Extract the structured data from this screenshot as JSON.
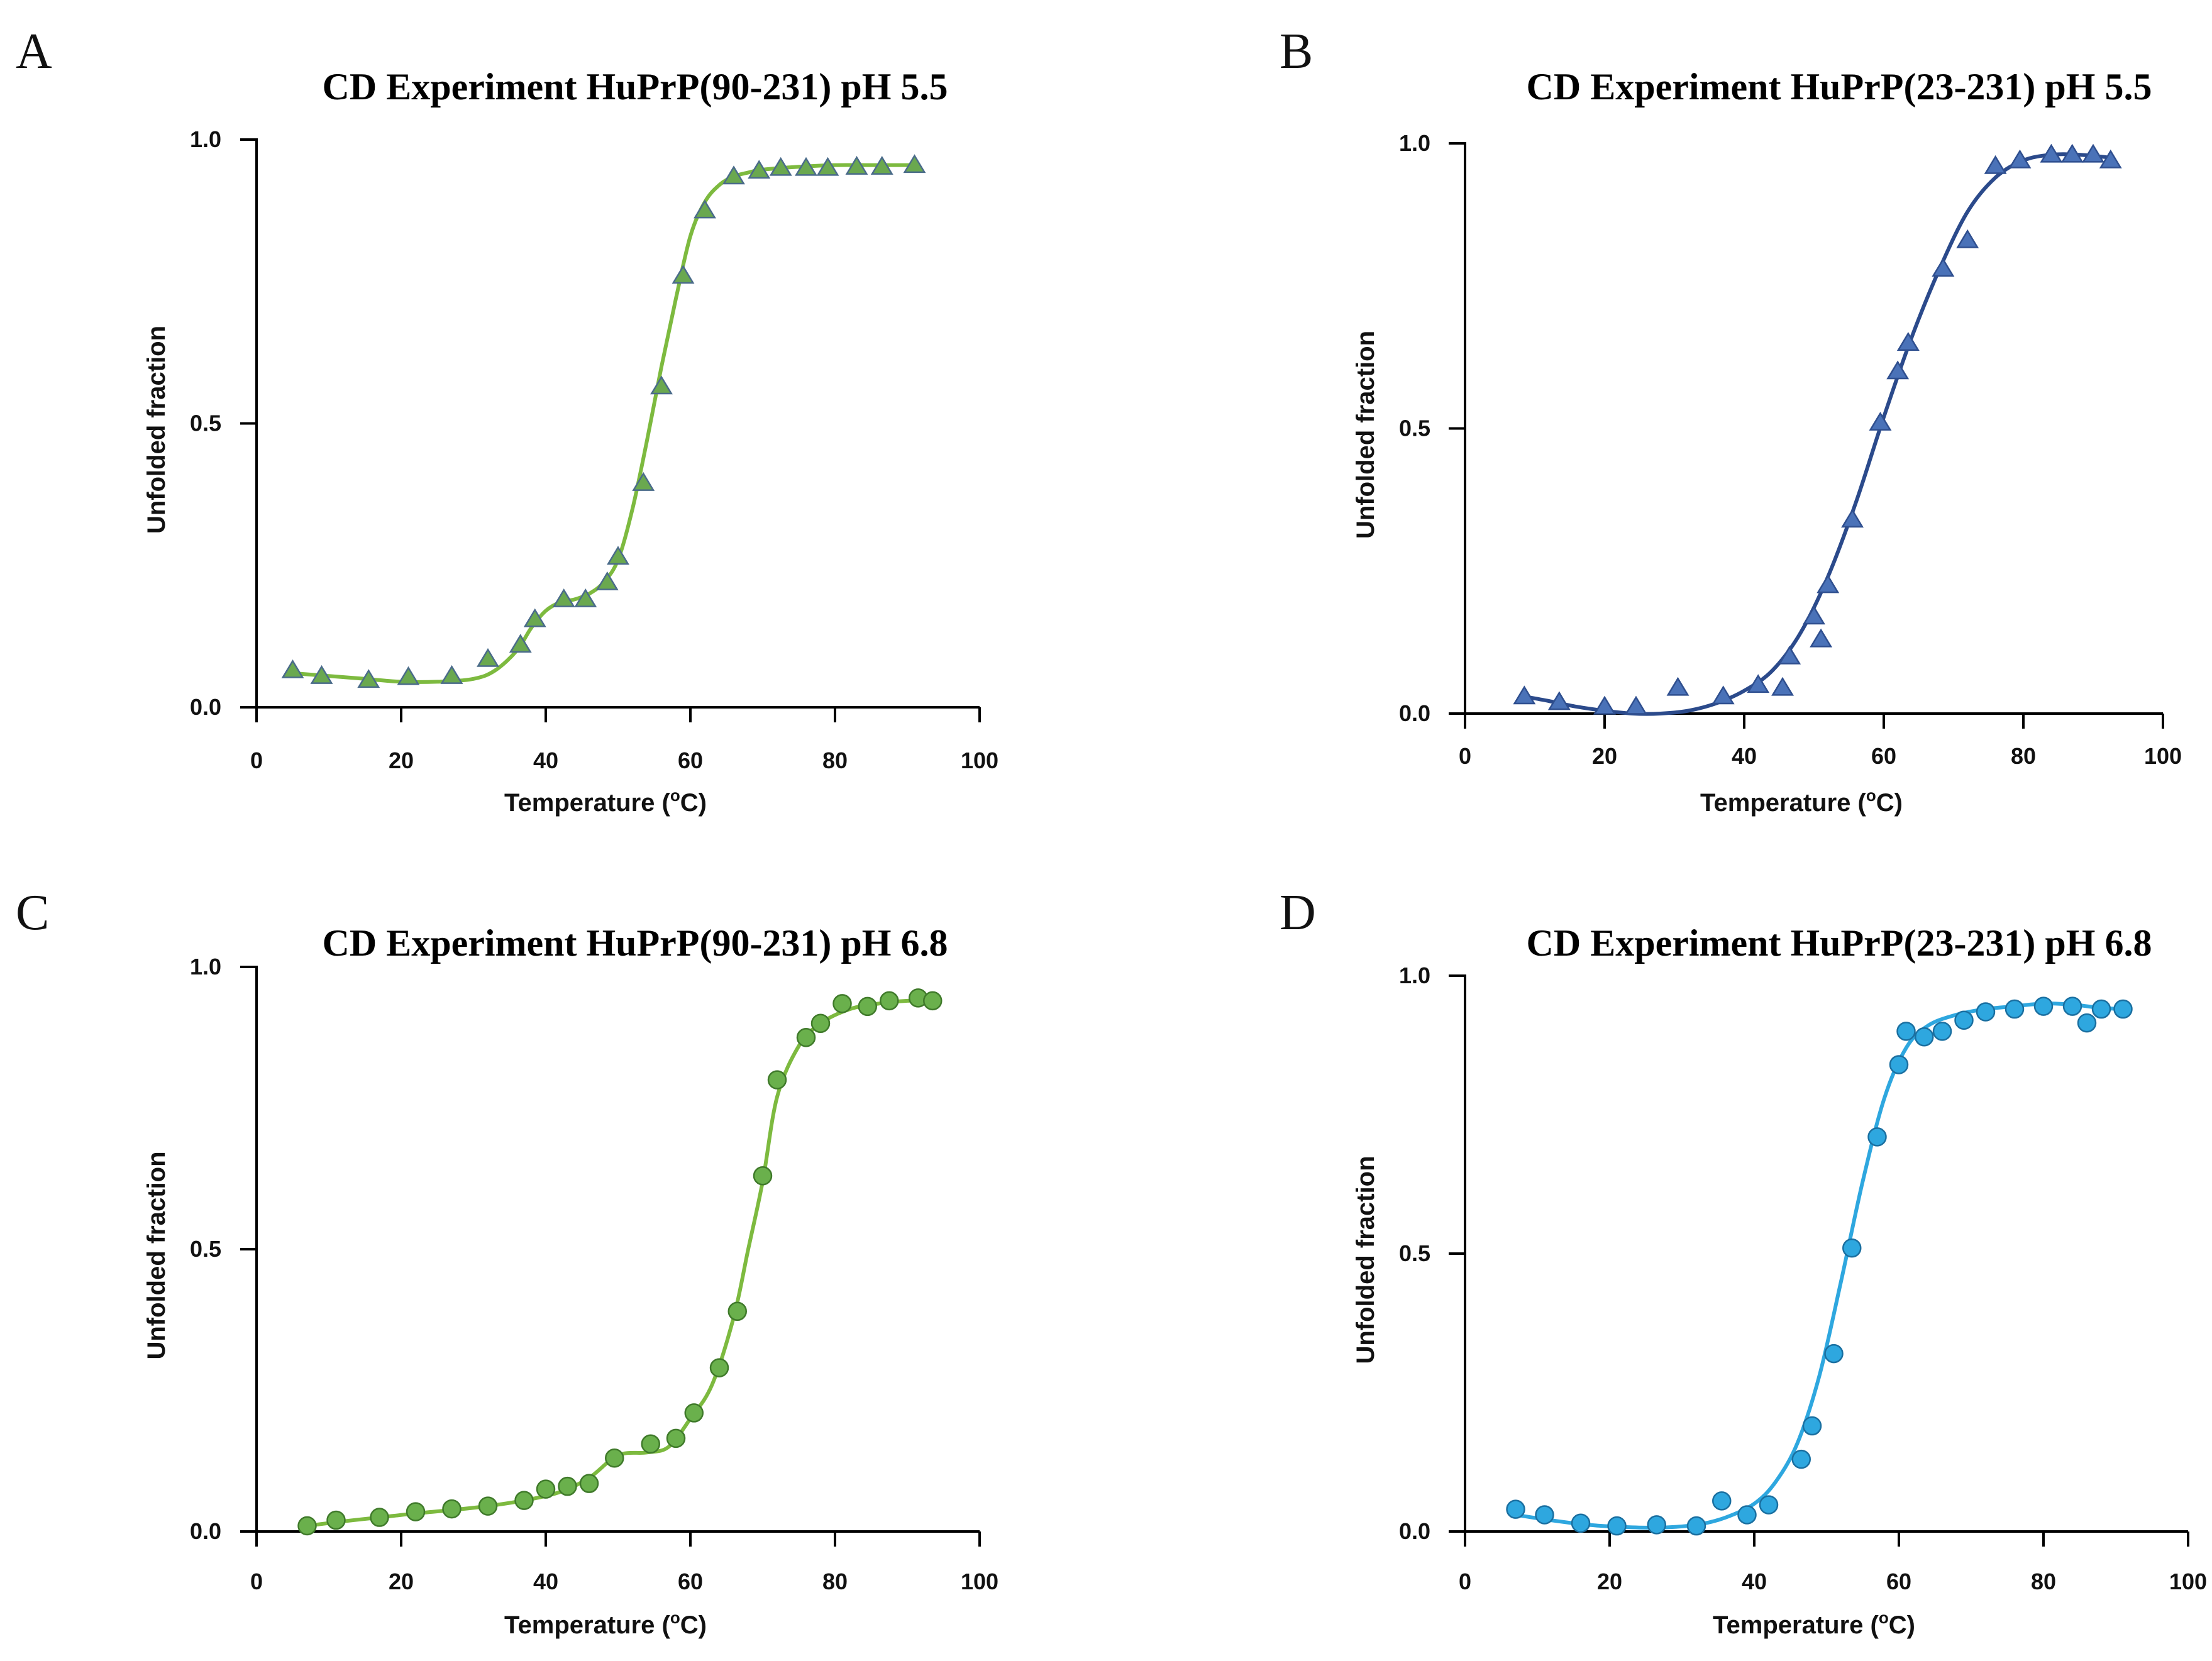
{
  "chart_data": [
    {
      "panel": "A",
      "type": "scatter",
      "title": "CD Experiment HuPrP(90-231) pH 5.5",
      "xlabel": "Temperature (",
      "xlabel_sup": "o",
      "xlabel_unit": "C)",
      "ylabel": "Unfolded fraction",
      "xlim": [
        0,
        100
      ],
      "ylim": [
        0,
        1.0
      ],
      "xticks": [
        "0",
        "20",
        "40",
        "60",
        "80",
        "100"
      ],
      "yticks": [
        "0.0",
        "0.5",
        "1.0"
      ],
      "marker": "triangle",
      "marker_color": "#6aa84f",
      "marker_edge": "#4a6b8a",
      "line_color": "#7dba3f",
      "series": [
        {
          "name": "data",
          "x": [
            5,
            9,
            15.5,
            21,
            27,
            32,
            36.5,
            38.5,
            42.5,
            45.5,
            48.5,
            50,
            53.5,
            56,
            59,
            62,
            66,
            69.5,
            72.5,
            76,
            79,
            83,
            86.5,
            91
          ],
          "y": [
            0.065,
            0.055,
            0.048,
            0.053,
            0.055,
            0.085,
            0.11,
            0.155,
            0.19,
            0.19,
            0.22,
            0.265,
            0.395,
            0.565,
            0.76,
            0.875,
            0.935,
            0.945,
            0.95,
            0.95,
            0.95,
            0.952,
            0.952,
            0.955
          ]
        },
        {
          "name": "fit",
          "x": [
            5,
            10,
            15,
            20,
            25,
            30,
            33,
            36,
            38,
            40,
            42,
            44,
            46,
            48,
            50,
            52,
            54,
            56,
            58,
            60,
            62,
            64,
            66,
            68,
            70,
            75,
            80,
            85,
            91
          ],
          "y": [
            0.06,
            0.055,
            0.05,
            0.045,
            0.045,
            0.05,
            0.065,
            0.1,
            0.14,
            0.17,
            0.185,
            0.19,
            0.2,
            0.22,
            0.26,
            0.35,
            0.47,
            0.6,
            0.72,
            0.83,
            0.89,
            0.92,
            0.935,
            0.942,
            0.947,
            0.952,
            0.955,
            0.955,
            0.955
          ]
        }
      ]
    },
    {
      "panel": "B",
      "type": "scatter",
      "title": "CD Experiment HuPrP(23-231) pH 5.5",
      "xlabel": "Temperature (",
      "xlabel_sup": "o",
      "xlabel_unit": "C)",
      "ylabel": "Unfolded fraction",
      "xlim": [
        0,
        100
      ],
      "ylim": [
        0,
        1.0
      ],
      "xticks": [
        "0",
        "20",
        "40",
        "60",
        "80",
        "100"
      ],
      "yticks": [
        "0.0",
        "0.5",
        "1.0"
      ],
      "marker": "triangle",
      "marker_color": "#4a72b8",
      "marker_edge": "#2f4f8f",
      "line_color": "#2b4a8b",
      "series": [
        {
          "name": "data",
          "x": [
            8.5,
            13.5,
            20,
            24.5,
            30.5,
            37,
            42,
            45.5,
            46.5,
            50,
            51,
            52,
            55.5,
            59.5,
            62,
            63.5,
            68.5,
            72,
            76,
            79.5,
            84,
            87,
            90,
            92.5
          ],
          "y": [
            0.03,
            0.02,
            0.012,
            0.012,
            0.045,
            0.03,
            0.05,
            0.045,
            0.1,
            0.17,
            0.13,
            0.225,
            0.34,
            0.51,
            0.6,
            0.65,
            0.78,
            0.83,
            0.96,
            0.97,
            0.98,
            0.98,
            0.98,
            0.97
          ]
        },
        {
          "name": "fit",
          "x": [
            8.5,
            12,
            16,
            20,
            24,
            28,
            32,
            36,
            40,
            44,
            48,
            52,
            56,
            60,
            64,
            68,
            72,
            76,
            80,
            84,
            88,
            92.5
          ],
          "y": [
            0.03,
            0.022,
            0.012,
            0.005,
            0.0,
            0.0,
            0.005,
            0.018,
            0.04,
            0.075,
            0.14,
            0.24,
            0.37,
            0.52,
            0.66,
            0.78,
            0.88,
            0.94,
            0.97,
            0.98,
            0.98,
            0.975
          ]
        }
      ]
    },
    {
      "panel": "C",
      "type": "scatter",
      "title": "CD Experiment HuPrP(90-231) pH 6.8",
      "xlabel": "Temperature (",
      "xlabel_sup": "o",
      "xlabel_unit": "C)",
      "ylabel": "Unfolded fraction",
      "xlim": [
        0,
        100
      ],
      "ylim": [
        0,
        1.0
      ],
      "xticks": [
        "0",
        "20",
        "40",
        "60",
        "80",
        "100"
      ],
      "yticks": [
        "0.0",
        "0.5",
        "1.0"
      ],
      "marker": "circle",
      "marker_color": "#6ab04c",
      "marker_edge": "#3f7a2a",
      "line_color": "#7dba3f",
      "series": [
        {
          "name": "data",
          "x": [
            7,
            11,
            17,
            22,
            27,
            32,
            37,
            40,
            43,
            46,
            49.5,
            54.5,
            58,
            60.5,
            64,
            66.5,
            70,
            72,
            76,
            78,
            81,
            84.5,
            87.5,
            91.5,
            93.5
          ],
          "y": [
            0.01,
            0.02,
            0.025,
            0.035,
            0.04,
            0.045,
            0.055,
            0.075,
            0.08,
            0.085,
            0.13,
            0.155,
            0.165,
            0.21,
            0.29,
            0.39,
            0.63,
            0.8,
            0.875,
            0.9,
            0.935,
            0.93,
            0.94,
            0.945,
            0.94
          ]
        },
        {
          "name": "fit",
          "x": [
            7,
            12,
            17,
            22,
            27,
            32,
            37,
            42,
            46,
            50,
            54,
            57,
            60,
            63,
            66,
            68,
            70,
            72,
            75,
            78,
            82,
            86,
            90,
            93.5
          ],
          "y": [
            0.01,
            0.018,
            0.025,
            0.032,
            0.038,
            0.045,
            0.055,
            0.07,
            0.095,
            0.135,
            0.14,
            0.15,
            0.2,
            0.26,
            0.38,
            0.5,
            0.62,
            0.77,
            0.86,
            0.9,
            0.925,
            0.935,
            0.94,
            0.94
          ]
        }
      ]
    },
    {
      "panel": "D",
      "type": "scatter",
      "title": "CD Experiment HuPrP(23-231) pH 6.8",
      "xlabel": "Temperature (",
      "xlabel_sup": "o",
      "xlabel_unit": "C)",
      "ylabel": "Unfolded fraction",
      "xlim": [
        0,
        100
      ],
      "ylim": [
        0,
        1.0
      ],
      "xticks": [
        "0",
        "20",
        "40",
        "60",
        "80",
        "100"
      ],
      "yticks": [
        "0.0",
        "0.5",
        "1.0"
      ],
      "marker": "circle",
      "marker_color": "#2ea7df",
      "marker_edge": "#1a6fa0",
      "line_color": "#2ea7df",
      "series": [
        {
          "name": "data",
          "x": [
            7,
            11,
            16,
            21,
            26.5,
            32,
            35.5,
            39,
            42,
            46.5,
            48,
            51,
            53.5,
            57,
            60,
            61,
            63.5,
            66,
            69,
            72,
            76,
            80,
            84,
            86,
            88,
            91
          ],
          "y": [
            0.04,
            0.03,
            0.015,
            0.01,
            0.012,
            0.01,
            0.055,
            0.03,
            0.048,
            0.13,
            0.19,
            0.32,
            0.51,
            0.71,
            0.84,
            0.9,
            0.89,
            0.9,
            0.92,
            0.935,
            0.94,
            0.945,
            0.945,
            0.915,
            0.94,
            0.94
          ]
        },
        {
          "name": "fit",
          "x": [
            7,
            12,
            17,
            22,
            27,
            32,
            36,
            40,
            43,
            46,
            49,
            52,
            55,
            58,
            61,
            64,
            68,
            72,
            76,
            80,
            84,
            88,
            91
          ],
          "y": [
            0.03,
            0.02,
            0.012,
            0.008,
            0.007,
            0.012,
            0.025,
            0.05,
            0.09,
            0.16,
            0.28,
            0.45,
            0.63,
            0.78,
            0.87,
            0.91,
            0.93,
            0.94,
            0.945,
            0.95,
            0.948,
            0.942,
            0.94
          ]
        }
      ]
    }
  ]
}
